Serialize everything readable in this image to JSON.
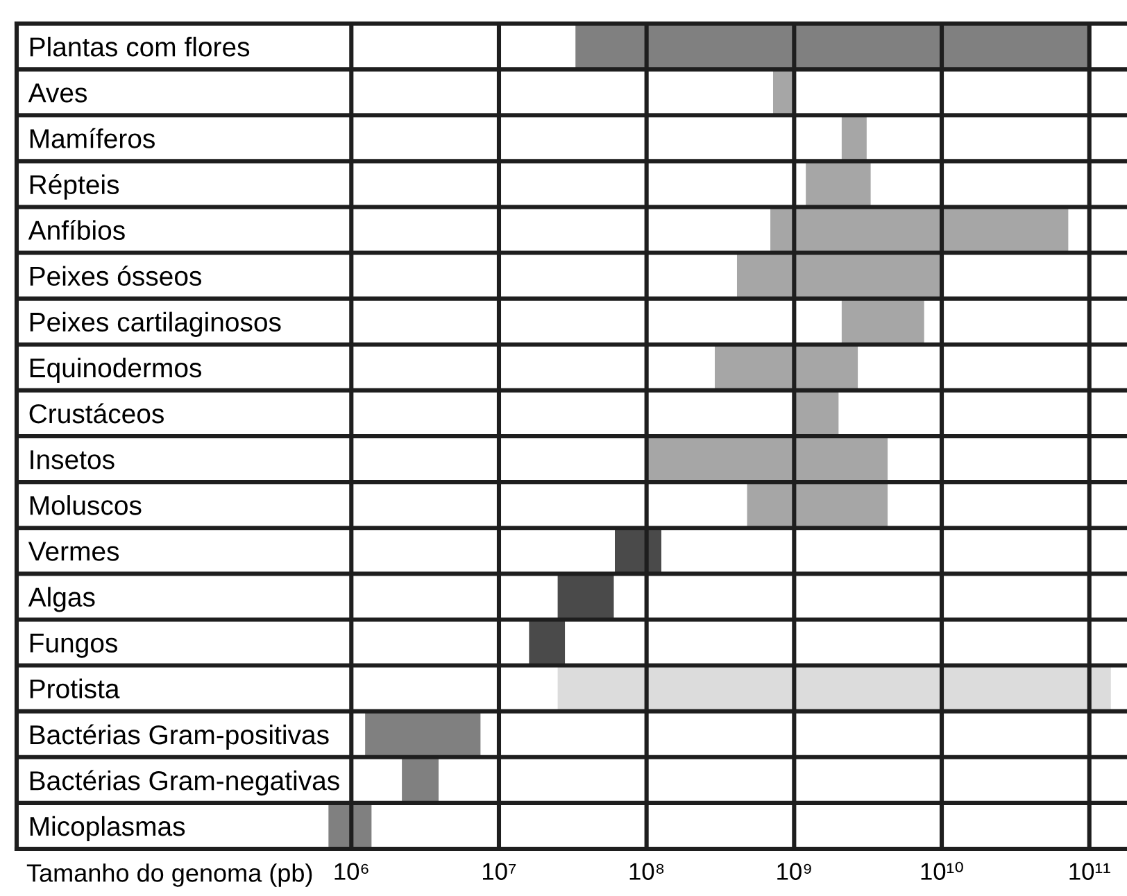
{
  "chart_data": {
    "type": "bar",
    "orientation": "horizontal",
    "xlabel": "Tamanho do genoma (pb)",
    "categories": [
      "Plantas com flores",
      "Aves",
      "Mamíferos",
      "Répteis",
      "Anfíbios",
      "Peixes ósseos",
      "Peixes cartilaginosos",
      "Equinodermos",
      "Crustáceos",
      "Insetos",
      "Moluscos",
      "Vermes",
      "Algas",
      "Fungos",
      "Protista",
      "Bactérias Gram-positivas",
      "Bactérias Gram-negativas",
      "Micoplasmas"
    ],
    "base": [
      33000000,
      720000000,
      2100000000,
      1200000000,
      690000000,
      410000000,
      2100000000,
      290000000,
      1000000000,
      100000000,
      480000000,
      61000000,
      25000000,
      16000000,
      25000000,
      1240000,
      2200000,
      700000
    ],
    "values": [
      99967000000,
      280000000,
      1000000000,
      2100000000,
      71310000000,
      9590000000,
      5500000000,
      2410000000,
      1000000000,
      4200000000,
      3820000000,
      65000000,
      35000000,
      12000000,
      139975000000,
      6260000,
      1700000,
      670000
    ],
    "colors": [
      "#808080",
      "#a6a6a6",
      "#a6a6a6",
      "#a6a6a6",
      "#a6a6a6",
      "#a6a6a6",
      "#a6a6a6",
      "#a6a6a6",
      "#a6a6a6",
      "#a6a6a6",
      "#a6a6a6",
      "#4a4a4a",
      "#4a4a4a",
      "#4a4a4a",
      "#dcdcdc",
      "#808080",
      "#808080",
      "#808080"
    ],
    "log": "x",
    "xlim": [
      5400,
      180000000000
    ],
    "xticks": [
      {
        "value": 1000000,
        "label": "10⁶"
      },
      {
        "value": 10000000,
        "label": "10⁷"
      },
      {
        "value": 100000000,
        "label": "10⁸"
      },
      {
        "value": 1000000000,
        "label": "10⁹"
      },
      {
        "value": 10000000000,
        "label": "10¹⁰"
      },
      {
        "value": 100000000000,
        "label": "10¹¹"
      }
    ],
    "grid": true
  }
}
